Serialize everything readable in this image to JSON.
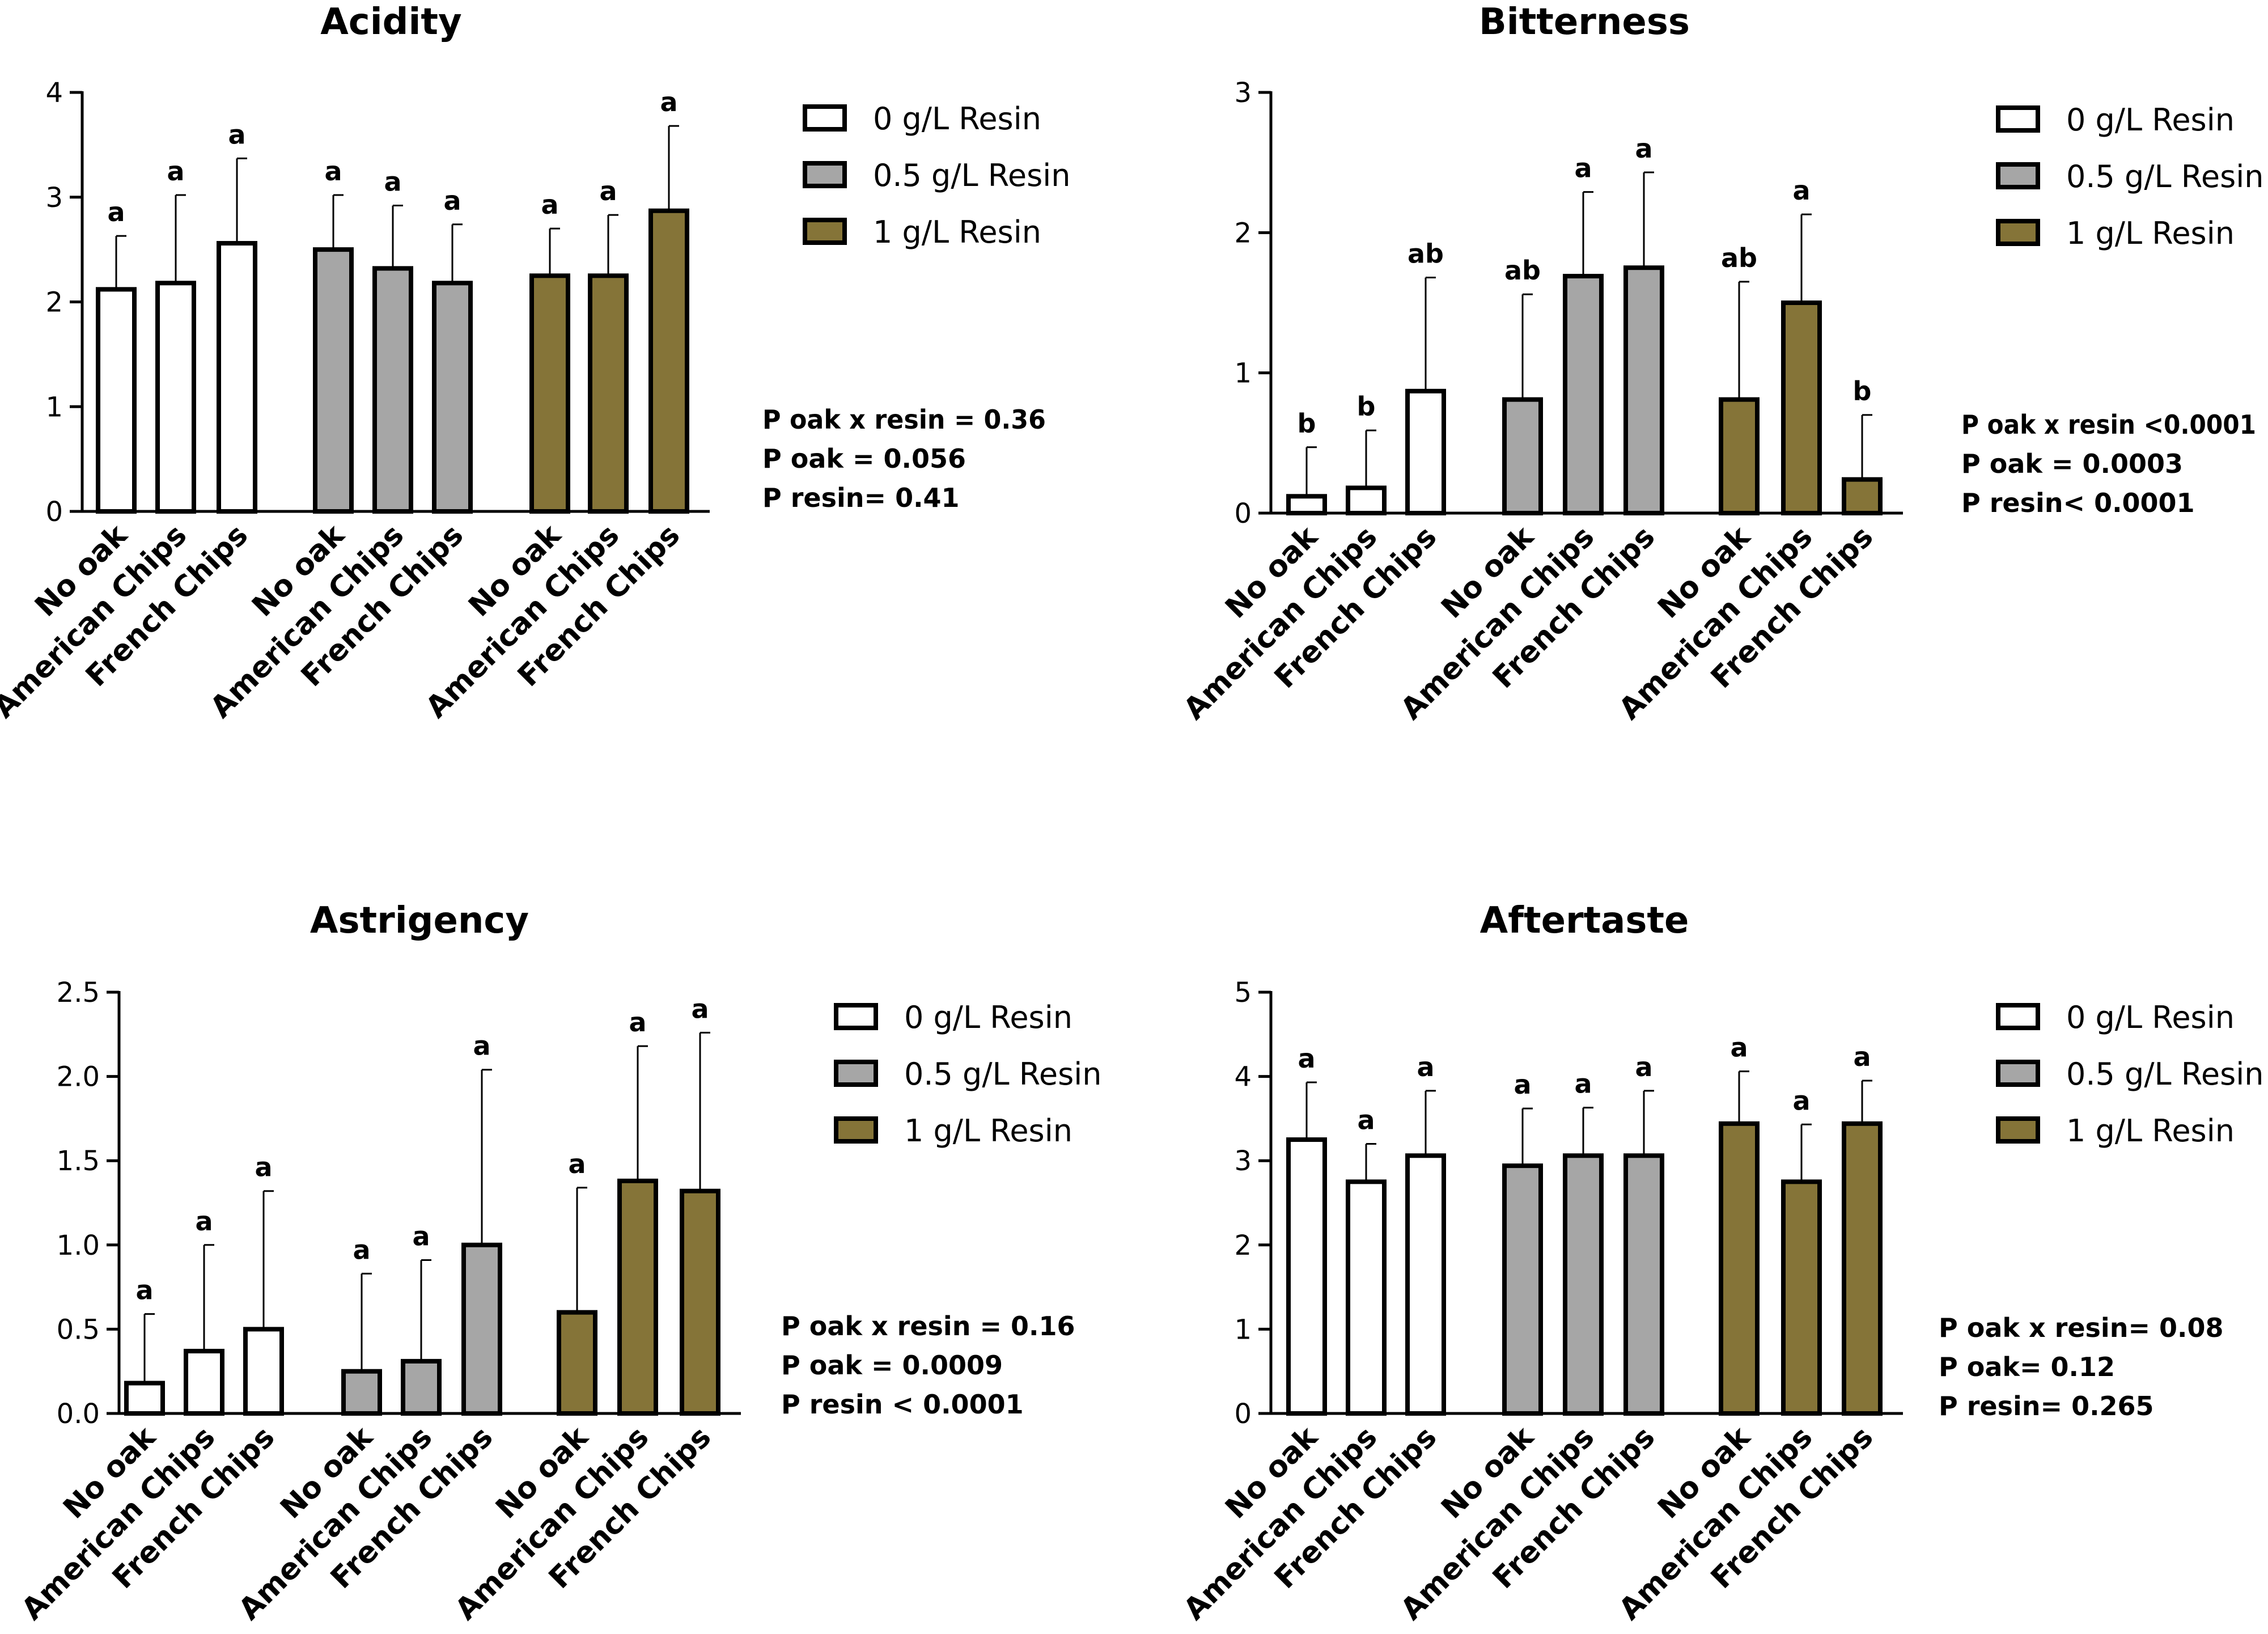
{
  "chart_data": [
    {
      "type": "bar",
      "title": "Acidity",
      "categories": [
        "No oak",
        "American Chips",
        "French Chips"
      ],
      "ylim": [
        0,
        4
      ],
      "yticks": [
        "0",
        "1",
        "2",
        "3",
        "4"
      ],
      "series": [
        {
          "name": "0 g/L Resin",
          "color": "#ffffff",
          "values": [
            2.12,
            2.18,
            2.56
          ],
          "errors": [
            0.51,
            0.84,
            0.81
          ],
          "letters": [
            "a",
            "a",
            "a"
          ]
        },
        {
          "name": "0.5 g/L Resin",
          "color": "#a6a6a6",
          "values": [
            2.5,
            2.32,
            2.18
          ],
          "errors": [
            0.52,
            0.6,
            0.56
          ],
          "letters": [
            "a",
            "a",
            "a"
          ]
        },
        {
          "name": "1 g/L Resin",
          "color": "#857438",
          "values": [
            2.25,
            2.25,
            2.87
          ],
          "errors": [
            0.45,
            0.58,
            0.81
          ],
          "letters": [
            "a",
            "a",
            "a"
          ]
        }
      ],
      "stats": [
        "P oak x resin = 0.36",
        "P oak = 0.056",
        "P resin= 0.41"
      ]
    },
    {
      "type": "bar",
      "title": "Bitterness",
      "categories": [
        "No oak",
        "American Chips",
        "French Chips"
      ],
      "ylim": [
        0,
        3
      ],
      "yticks": [
        "0",
        "1",
        "2",
        "3"
      ],
      "series": [
        {
          "name": "0 g/L Resin",
          "color": "#ffffff",
          "values": [
            0.12,
            0.18,
            0.87
          ],
          "errors": [
            0.35,
            0.41,
            0.81
          ],
          "letters": [
            "b",
            "b",
            "ab"
          ]
        },
        {
          "name": "0.5 g/L Resin",
          "color": "#a6a6a6",
          "values": [
            0.81,
            1.69,
            1.75
          ],
          "errors": [
            0.75,
            0.6,
            0.68
          ],
          "letters": [
            "ab",
            "a",
            "a"
          ]
        },
        {
          "name": "1 g/L Resin",
          "color": "#857438",
          "values": [
            0.81,
            1.5,
            0.24
          ],
          "errors": [
            0.84,
            0.63,
            0.46
          ],
          "letters": [
            "ab",
            "a",
            "b"
          ]
        }
      ],
      "stats": [
        "P oak x resin <0.0001",
        "P oak = 0.0003",
        "P resin< 0.0001"
      ]
    },
    {
      "type": "bar",
      "title": "Astrigency",
      "categories": [
        "No oak",
        "American Chips",
        "French Chips"
      ],
      "ylim": [
        0,
        2.5
      ],
      "yticks": [
        "0.0",
        "0.5",
        "1.0",
        "1.5",
        "2.0",
        "2.5"
      ],
      "series": [
        {
          "name": "0 g/L Resin",
          "color": "#ffffff",
          "values": [
            0.18,
            0.37,
            0.5
          ],
          "errors": [
            0.41,
            0.63,
            0.82
          ],
          "letters": [
            "a",
            "a",
            "a"
          ]
        },
        {
          "name": "0.5 g/L Resin",
          "color": "#a6a6a6",
          "values": [
            0.25,
            0.31,
            1.0
          ],
          "errors": [
            0.58,
            0.6,
            1.04
          ],
          "letters": [
            "a",
            "a",
            "a"
          ]
        },
        {
          "name": "1 g/L Resin",
          "color": "#857438",
          "values": [
            0.6,
            1.38,
            1.32
          ],
          "errors": [
            0.74,
            0.8,
            0.94
          ],
          "letters": [
            "a",
            "a",
            "a"
          ]
        }
      ],
      "stats": [
        "P oak x resin = 0.16",
        "P oak = 0.0009",
        "P resin < 0.0001"
      ]
    },
    {
      "type": "bar",
      "title": "Aftertaste",
      "categories": [
        "No oak",
        "American Chips",
        "French Chips"
      ],
      "ylim": [
        0,
        5
      ],
      "yticks": [
        "0",
        "1",
        "2",
        "3",
        "4",
        "5"
      ],
      "series": [
        {
          "name": "0 g/L Resin",
          "color": "#ffffff",
          "values": [
            3.25,
            2.75,
            3.06
          ],
          "errors": [
            0.68,
            0.45,
            0.77
          ],
          "letters": [
            "a",
            "a",
            "a"
          ]
        },
        {
          "name": "0.5 g/L Resin",
          "color": "#a6a6a6",
          "values": [
            2.94,
            3.06,
            3.06
          ],
          "errors": [
            0.68,
            0.57,
            0.77
          ],
          "letters": [
            "a",
            "a",
            "a"
          ]
        },
        {
          "name": "1 g/L Resin",
          "color": "#857438",
          "values": [
            3.44,
            2.75,
            3.44
          ],
          "errors": [
            0.62,
            0.68,
            0.51
          ],
          "letters": [
            "a",
            "a",
            "a"
          ]
        }
      ],
      "stats": [
        "P oak x resin= 0.08",
        "P oak= 0.12",
        "P resin= 0.265"
      ]
    }
  ]
}
